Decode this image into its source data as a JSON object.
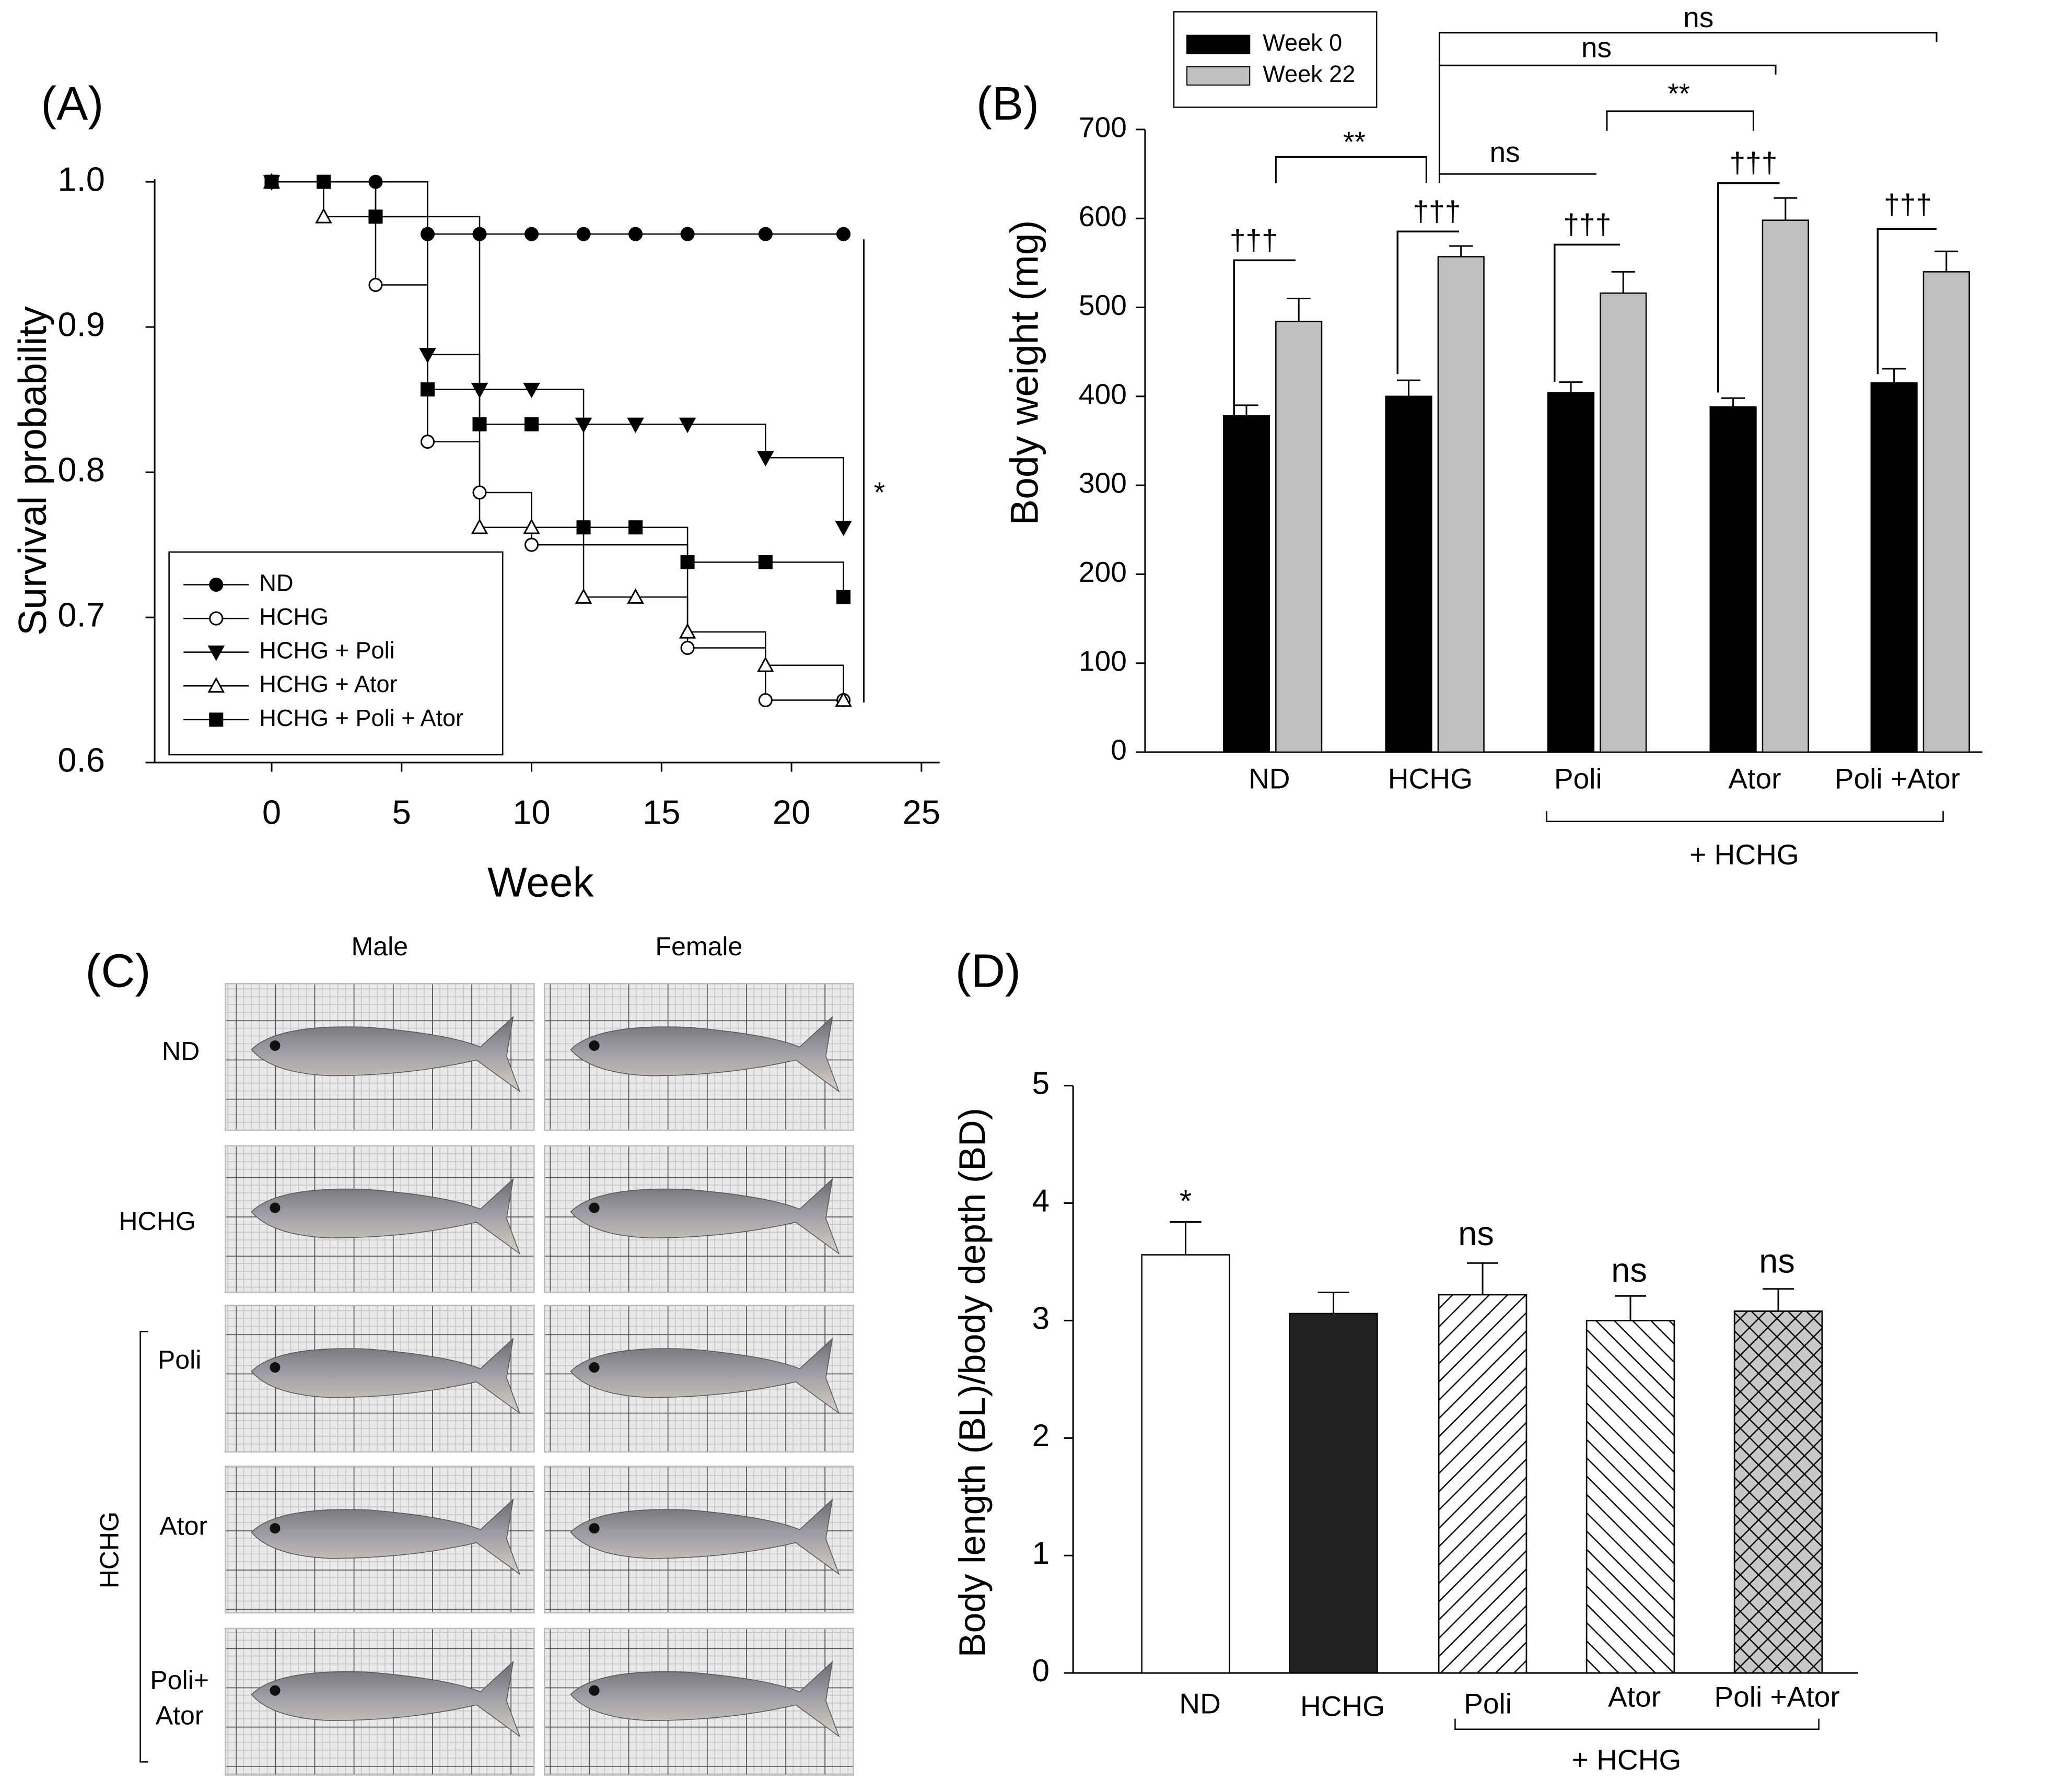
{
  "chart_data": [
    {
      "type": "line",
      "panel_label": "(A)",
      "xlabel": "Week",
      "ylabel": "Survival probability",
      "xlim": [
        -4.5,
        25.7
      ],
      "ylim": [
        0.6,
        1.0
      ],
      "xticks": [
        0,
        5,
        10,
        15,
        20,
        25
      ],
      "yticks": [
        0.6,
        0.7,
        0.8,
        0.9,
        {
          "value": 1,
          "label": "1.0"
        }
      ],
      "step": true,
      "legend": "lower left",
      "annotations": [
        "*"
      ],
      "series": [
        {
          "name": "ND",
          "color": "#000000",
          "marker": "circle",
          "marker_fill": "#000000",
          "x": [
            0,
            4,
            6,
            8,
            10,
            12,
            14,
            16,
            19,
            22
          ],
          "values": [
            1,
            1,
            0.964,
            0.964,
            0.964,
            0.964,
            0.964,
            0.964,
            0.964,
            0.964
          ]
        },
        {
          "name": "HCHG",
          "color": "#000000",
          "marker": "circle",
          "marker_fill": "#ffffff",
          "x": [
            0,
            4,
            6,
            8,
            10,
            16,
            19,
            22
          ],
          "values": [
            1,
            0.929,
            0.821,
            0.786,
            0.75,
            0.679,
            0.643,
            0.643
          ]
        },
        {
          "name": "HCHG + Poli",
          "color": "#000000",
          "marker": "triangle-down",
          "marker_fill": "#000000",
          "x": [
            0,
            6,
            8,
            10,
            12,
            14,
            16,
            19,
            22
          ],
          "values": [
            1,
            0.881,
            0.857,
            0.857,
            0.833,
            0.833,
            0.833,
            0.81,
            0.762
          ]
        },
        {
          "name": "HCHG + Ator",
          "color": "#000000",
          "marker": "triangle-up",
          "marker_fill": "#ffffff",
          "x": [
            0,
            2,
            8,
            10,
            12,
            14,
            16,
            19,
            22
          ],
          "values": [
            1,
            0.976,
            0.762,
            0.762,
            0.714,
            0.714,
            0.69,
            0.667,
            0.643
          ]
        },
        {
          "name": "HCHG + Poli + Ator",
          "color": "#000000",
          "marker": "square",
          "marker_fill": "#000000",
          "x": [
            0,
            2,
            4,
            6,
            8,
            10,
            12,
            14,
            16,
            19,
            22
          ],
          "values": [
            1,
            1,
            0.976,
            0.857,
            0.833,
            0.833,
            0.762,
            0.762,
            0.738,
            0.738,
            0.714
          ]
        }
      ]
    },
    {
      "type": "bar",
      "panel_label": "(B)",
      "ylabel": "Body weight  (mg)",
      "categories": [
        "ND",
        "HCHG",
        "Poli",
        "Ator",
        "Poli +Ator"
      ],
      "group_label": "+ HCHG",
      "ylim": [
        0,
        700
      ],
      "yticks": [
        0,
        100,
        200,
        300,
        400,
        500,
        600,
        700
      ],
      "legend": "upper left",
      "series": [
        {
          "name": "Week 0",
          "color": "#000000",
          "values": [
            378,
            400,
            404,
            388,
            415
          ],
          "errors": [
            12,
            18,
            12,
            10,
            16
          ]
        },
        {
          "name": "Week 22",
          "color": "#c0c0c0",
          "values": [
            484,
            557,
            516,
            598,
            540
          ],
          "errors": [
            26,
            12,
            24,
            25,
            23
          ]
        }
      ],
      "annotations": [
        "†††",
        "†††",
        "†††",
        "†††",
        "†††",
        "**",
        "ns",
        "**",
        "ns",
        "ns"
      ]
    },
    {
      "type": "bar",
      "panel_label": "(D)",
      "ylabel": "Body length (BL)/body depth (BD)",
      "categories": [
        "ND",
        "HCHG",
        "Poli",
        "Ator",
        "Poli +Ator"
      ],
      "group_label": "+ HCHG",
      "ylim": [
        0,
        5
      ],
      "yticks": [
        0,
        1,
        2,
        3,
        4,
        5
      ],
      "values": [
        3.56,
        3.06,
        3.22,
        3.0,
        3.08
      ],
      "errors": [
        0.28,
        0.18,
        0.27,
        0.21,
        0.19
      ],
      "colors": [
        "#ffffff",
        "#222222",
        "#ffffff",
        "#ffffff",
        "#c8c8c8"
      ],
      "patterns": [
        "solid",
        "solid",
        "diagonal",
        "back-diagonal",
        "cross"
      ],
      "annotations": [
        "*",
        "ns",
        "ns",
        "ns"
      ]
    }
  ],
  "figure_c": {
    "panel_label": "(C)",
    "columns": [
      "Male",
      "Female"
    ],
    "rows": [
      [
        "ND"
      ],
      [
        "HCHG"
      ],
      [
        "Poli"
      ],
      [
        "Ator"
      ],
      [
        "Poli+",
        "Ator"
      ]
    ],
    "group_label": "HCHG"
  }
}
